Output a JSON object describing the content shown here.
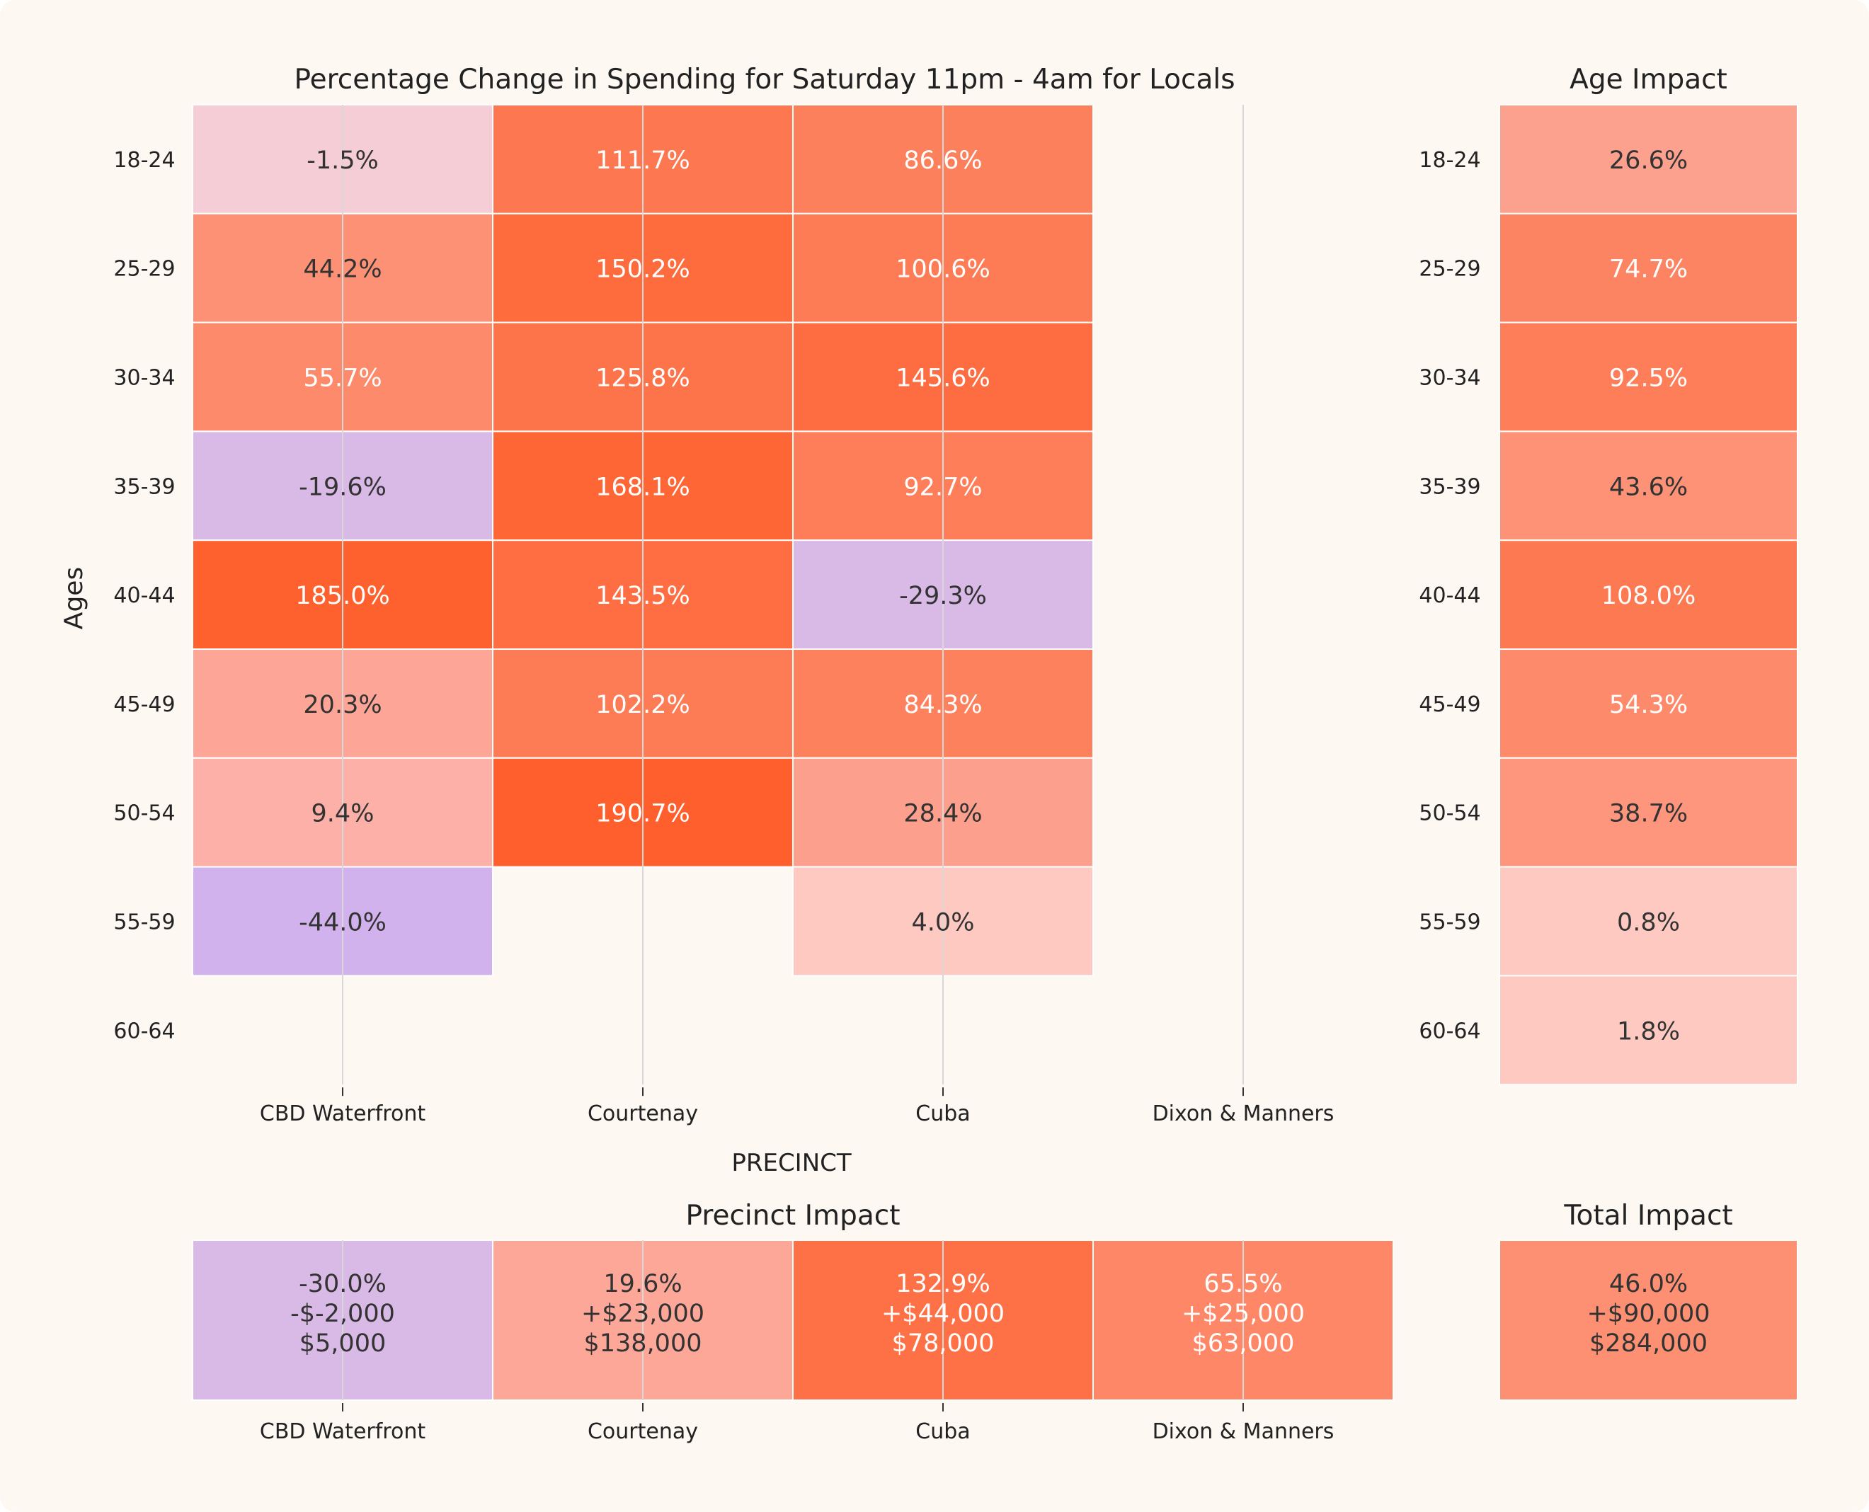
{
  "colors": {
    "background": "#fef8f3",
    "frame": "#fdf7f2",
    "gridline": "#d8d8d8",
    "text_dark": "#333333",
    "text_light": "#ffffff",
    "scale": {
      "neg_strong": "#d2b2ec",
      "neg_light": "#d9b9e6",
      "near_zero_neg": "#f5cdd6",
      "near_zero_pos": "#fec9c1",
      "low": "#fdb8b6",
      "mid": "#fd8c6d",
      "high": "#fe5f2c"
    }
  },
  "chart_data": [
    {
      "type": "heatmap",
      "title": "Percentage Change in Spending for Saturday 11pm - 4am for Locals",
      "xlabel": "PRECINCT",
      "ylabel": "Ages",
      "categories": [
        "CBD Waterfront",
        "Courtenay",
        "Cuba",
        "Dixon & Manners"
      ],
      "rows": [
        "18-24",
        "25-29",
        "30-34",
        "35-39",
        "40-44",
        "45-49",
        "50-54",
        "55-59",
        "60-64"
      ],
      "values": [
        [
          -1.5,
          111.7,
          86.6,
          null
        ],
        [
          44.2,
          150.2,
          100.6,
          null
        ],
        [
          55.7,
          125.8,
          145.6,
          null
        ],
        [
          -19.6,
          168.1,
          92.7,
          null
        ],
        [
          185.0,
          143.5,
          -29.3,
          null
        ],
        [
          20.3,
          102.2,
          84.3,
          null
        ],
        [
          9.4,
          190.7,
          28.4,
          null
        ],
        [
          -44.0,
          null,
          4.0,
          null
        ],
        [
          null,
          null,
          null,
          null
        ]
      ],
      "labels": [
        [
          "-1.5%",
          "111.7%",
          "86.6%",
          ""
        ],
        [
          "44.2%",
          "150.2%",
          "100.6%",
          ""
        ],
        [
          "55.7%",
          "125.8%",
          "145.6%",
          ""
        ],
        [
          "-19.6%",
          "168.1%",
          "92.7%",
          ""
        ],
        [
          "185.0%",
          "143.5%",
          "-29.3%",
          ""
        ],
        [
          "20.3%",
          "102.2%",
          "84.3%",
          ""
        ],
        [
          "9.4%",
          "190.7%",
          "28.4%",
          ""
        ],
        [
          "-44.0%",
          "",
          "4.0%",
          ""
        ],
        [
          "",
          "",
          "",
          ""
        ]
      ]
    },
    {
      "type": "heatmap",
      "title": "Age Impact",
      "rows": [
        "18-24",
        "25-29",
        "30-34",
        "35-39",
        "40-44",
        "45-49",
        "50-54",
        "55-59",
        "60-64"
      ],
      "values": [
        26.6,
        74.7,
        92.5,
        43.6,
        108.0,
        54.3,
        38.7,
        0.8,
        1.8
      ],
      "labels": [
        "26.6%",
        "74.7%",
        "92.5%",
        "43.6%",
        "108.0%",
        "54.3%",
        "38.7%",
        "0.8%",
        "1.8%"
      ]
    },
    {
      "type": "heatmap",
      "title": "Precinct Impact",
      "categories": [
        "CBD Waterfront",
        "Courtenay",
        "Cuba",
        "Dixon & Manners"
      ],
      "values": [
        -30.0,
        19.6,
        132.9,
        65.5
      ],
      "labels": [
        [
          "-30.0%",
          "-$-2,000",
          "$5,000"
        ],
        [
          "19.6%",
          "+$23,000",
          "$138,000"
        ],
        [
          "132.9%",
          "+$44,000",
          "$78,000"
        ],
        [
          "65.5%",
          "+$25,000",
          "$63,000"
        ]
      ]
    },
    {
      "type": "heatmap",
      "title": "Total Impact",
      "values": [
        46.0
      ],
      "labels": [
        [
          "46.0%",
          "+$90,000",
          "$284,000"
        ]
      ]
    }
  ]
}
